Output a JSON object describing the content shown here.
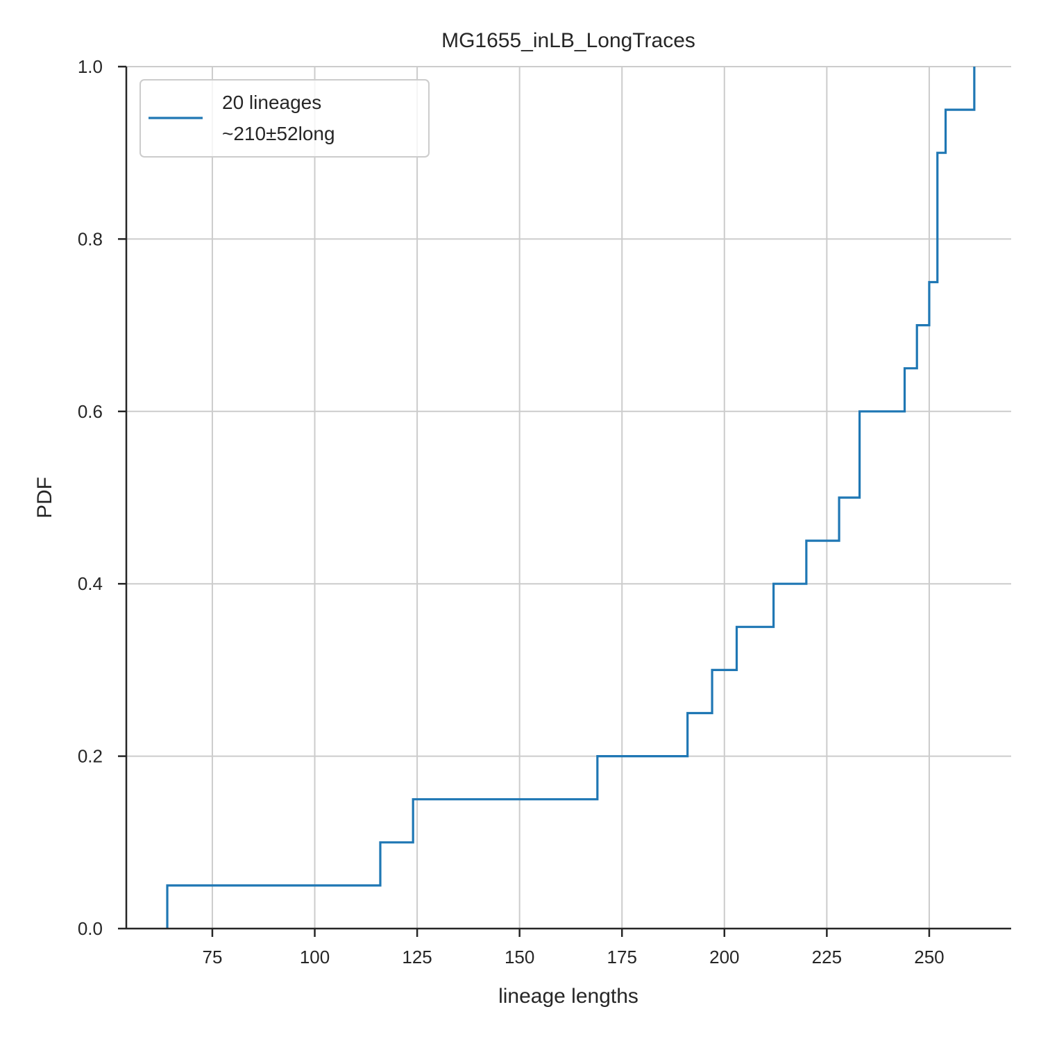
{
  "chart_data": {
    "type": "line",
    "drawstyle": "steps-post (empirical CDF)",
    "title": "MG1655_inLB_LongTraces",
    "xlabel": "lineage lengths",
    "ylabel": "PDF",
    "xlim": [
      54,
      270
    ],
    "ylim": [
      0,
      1
    ],
    "xticks": [
      75,
      100,
      125,
      150,
      175,
      200,
      225,
      250
    ],
    "yticks": [
      0.0,
      0.2,
      0.4,
      0.6,
      0.8,
      1.0
    ],
    "grid": true,
    "legend_position": "top-left",
    "legend": {
      "line1": "20 lineages",
      "line2": "$\\sim 210 \\pm 52$ long"
    },
    "series": [
      {
        "name": "20 lineages ~210 ± 52 long",
        "color": "#1f77b4",
        "x": [
          64,
          116,
          124,
          169,
          191,
          197,
          203,
          212,
          220,
          228,
          233,
          244,
          247,
          250,
          252,
          254,
          261
        ],
        "y": [
          0.05,
          0.1,
          0.15,
          0.2,
          0.25,
          0.3,
          0.35,
          0.4,
          0.45,
          0.5,
          0.6,
          0.65,
          0.7,
          0.75,
          0.9,
          0.95,
          1.0
        ]
      }
    ]
  }
}
